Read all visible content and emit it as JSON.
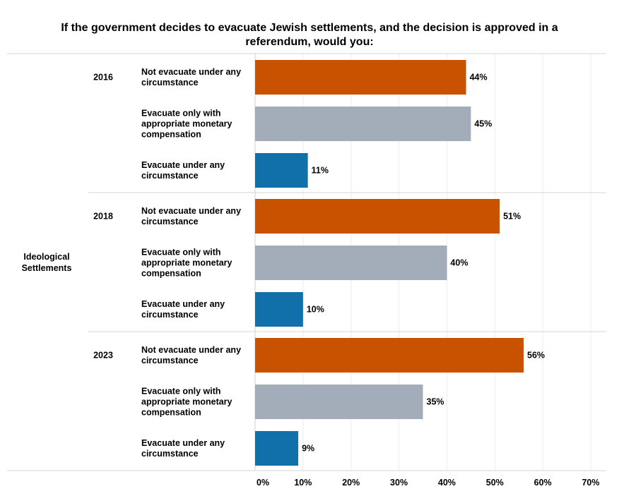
{
  "chart_data": {
    "type": "bar",
    "orientation": "horizontal",
    "title": "If the government decides to evacuate Jewish settlements, and the decision is approved in a referendum, would you:",
    "group_label": "Ideological Settlements",
    "categories": [
      "Not evacuate under any circumstance",
      "Evacuate only with appropriate monetary compensation",
      "Evacuate under any circumstance"
    ],
    "years": [
      "2016",
      "2018",
      "2023"
    ],
    "series": [
      {
        "name": "2016",
        "values": [
          44,
          45,
          11
        ],
        "labels": [
          "44%",
          "45%",
          "11%"
        ]
      },
      {
        "name": "2018",
        "values": [
          51,
          40,
          10
        ],
        "labels": [
          "51%",
          "40%",
          "10%"
        ]
      },
      {
        "name": "2023",
        "values": [
          56,
          35,
          9
        ],
        "labels": [
          "56%",
          "35%",
          "9%"
        ]
      }
    ],
    "category_colors": [
      "#c85200",
      "#a3acb9",
      "#1170aa"
    ],
    "xlim": [
      0,
      70
    ],
    "xticks": [
      "0%",
      "10%",
      "20%",
      "30%",
      "40%",
      "50%",
      "60%",
      "70%"
    ],
    "grid": true
  }
}
